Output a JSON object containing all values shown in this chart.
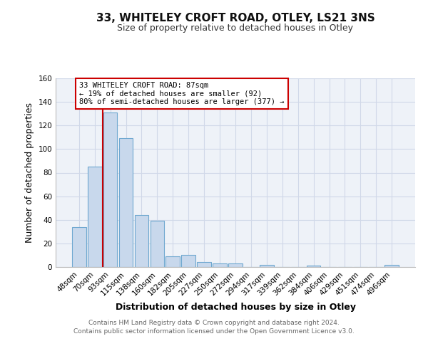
{
  "title_line1": "33, WHITELEY CROFT ROAD, OTLEY, LS21 3NS",
  "title_line2": "Size of property relative to detached houses in Otley",
  "xlabel": "Distribution of detached houses by size in Otley",
  "ylabel": "Number of detached properties",
  "bar_labels": [
    "48sqm",
    "70sqm",
    "93sqm",
    "115sqm",
    "138sqm",
    "160sqm",
    "182sqm",
    "205sqm",
    "227sqm",
    "250sqm",
    "272sqm",
    "294sqm",
    "317sqm",
    "339sqm",
    "362sqm",
    "384sqm",
    "406sqm",
    "429sqm",
    "451sqm",
    "474sqm",
    "496sqm"
  ],
  "bar_values": [
    34,
    85,
    131,
    109,
    44,
    39,
    9,
    10,
    4,
    3,
    3,
    0,
    2,
    0,
    0,
    1,
    0,
    0,
    0,
    0,
    2
  ],
  "bar_color": "#c8d8ec",
  "bar_edge_color": "#6fa8d0",
  "vline_x_index": 2,
  "vline_color": "#cc0000",
  "annotation_line1": "33 WHITELEY CROFT ROAD: 87sqm",
  "annotation_line2": "← 19% of detached houses are smaller (92)",
  "annotation_line3": "80% of semi-detached houses are larger (377) →",
  "annotation_box_color": "#ffffff",
  "annotation_box_edge_color": "#cc0000",
  "ylim": [
    0,
    160
  ],
  "yticks": [
    0,
    20,
    40,
    60,
    80,
    100,
    120,
    140,
    160
  ],
  "footer_line1": "Contains HM Land Registry data © Crown copyright and database right 2024.",
  "footer_line2": "Contains public sector information licensed under the Open Government Licence v3.0.",
  "background_color": "#eef2f8",
  "grid_color": "#d0d8e8",
  "title1_fontsize": 11,
  "title2_fontsize": 9,
  "ylabel_fontsize": 9,
  "xlabel_fontsize": 9,
  "tick_fontsize": 7.5,
  "footer_fontsize": 6.5
}
